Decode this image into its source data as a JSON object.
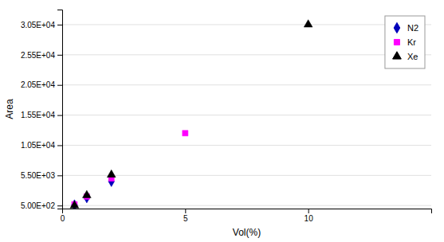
{
  "chart_data": {
    "type": "scatter",
    "x_label": "Vol(%)",
    "y_label": "Area",
    "series": [
      {
        "name": "N2",
        "color": "#0000bb",
        "marker": "diamond",
        "x": [
          0.5,
          1.0,
          2.0
        ],
        "values": [
          600,
          1800,
          4500
        ]
      },
      {
        "name": "Kr",
        "color": "#ff00ff",
        "marker": "square",
        "x": [
          0.5,
          1.0,
          2.0,
          5.0
        ],
        "values": [
          700,
          2000,
          5000,
          12500
        ]
      },
      {
        "name": "Xe",
        "color": "#000000",
        "marker": "triangle",
        "x": [
          0.5,
          1.0,
          2.0,
          10.0
        ],
        "values": [
          500,
          2200,
          5600,
          30500
        ]
      }
    ],
    "xlim": [
      0,
      15
    ],
    "ylim": [
      0,
      33000
    ],
    "xticks": [
      0,
      5,
      10
    ],
    "yticks": [
      {
        "value": 500,
        "label": "5.00E+02"
      },
      {
        "value": 5500,
        "label": "5.50E+03"
      },
      {
        "value": 10500,
        "label": "1.05E+04"
      },
      {
        "value": 15500,
        "label": "1.55E+04"
      },
      {
        "value": 20500,
        "label": "2.05E+04"
      },
      {
        "value": 25500,
        "label": "2.55E+04"
      },
      {
        "value": 30500,
        "label": "3.05E+04"
      }
    ],
    "grid": "y",
    "legend": "upper right"
  }
}
